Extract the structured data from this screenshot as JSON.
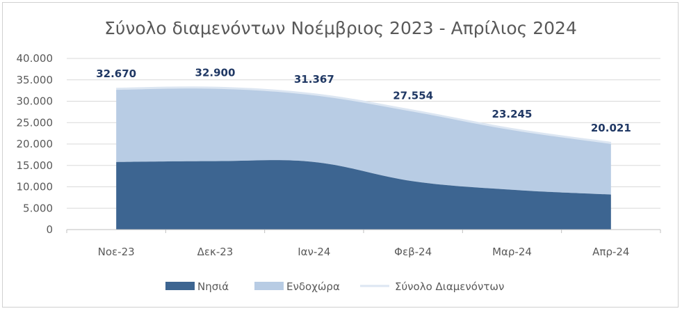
{
  "chart_data": {
    "type": "area",
    "title": "Σύνολο διαμενόντων Νοέμβριος 2023 - Απρίλιος 2024",
    "categories": [
      "Νοε-23",
      "Δεκ-23",
      "Ιαν-24",
      "Φεβ-24",
      "Μαρ-24",
      "Απρ-24"
    ],
    "series": [
      {
        "name": "Νησιά",
        "values": [
          15800,
          16000,
          15800,
          11300,
          9300,
          8200
        ],
        "color": "#3d6591"
      },
      {
        "name": "Ενδοχώρα",
        "values": [
          16870,
          16900,
          15567,
          16254,
          13945,
          11821
        ],
        "color": "#b8cce4"
      },
      {
        "name": "Σύνολο Διαμενόντων",
        "values": [
          32670,
          32900,
          31367,
          27554,
          23245,
          20021
        ],
        "color": "#dce6f2"
      }
    ],
    "data_labels": [
      "32.670",
      "32.900",
      "31.367",
      "27.554",
      "23.245",
      "20.021"
    ],
    "y_tick_labels": [
      "0",
      "5.000",
      "10.000",
      "15.000",
      "20.000",
      "25.000",
      "30.000",
      "35.000",
      "40.000"
    ],
    "ylim": [
      0,
      40000
    ],
    "legend_position": "bottom",
    "grid": true
  }
}
